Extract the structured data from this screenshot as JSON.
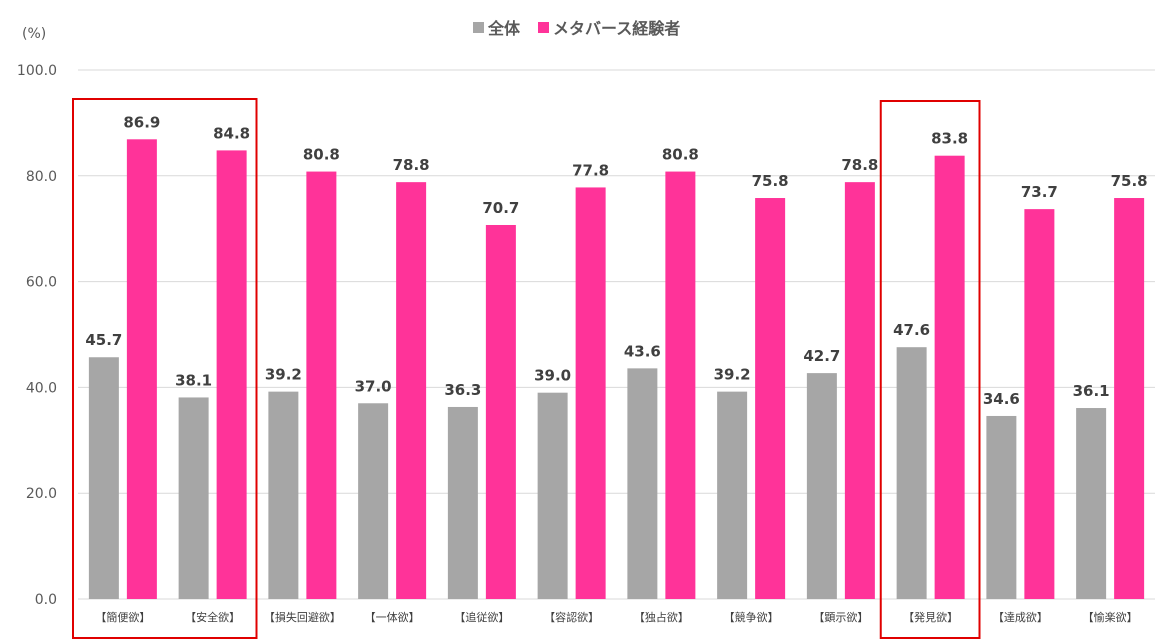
{
  "chart_data": {
    "type": "bar",
    "ylabel": "(%)",
    "ylim": [
      0,
      100
    ],
    "yticks": [
      "0.0",
      "20.0",
      "40.0",
      "60.0",
      "80.0",
      "100.0"
    ],
    "grid": true,
    "legend_position": "top-center",
    "categories": [
      "【簡便欲】",
      "【安全欲】",
      "【損失回避欲】",
      "【一体欲】",
      "【追従欲】",
      "【容認欲】",
      "【独占欲】",
      "【競争欲】",
      "【顕示欲】",
      "【発見欲】",
      "【達成欲】",
      "【愉楽欲】"
    ],
    "series": [
      {
        "name": "全体",
        "color": "#a6a6a6",
        "values": [
          45.7,
          38.1,
          39.2,
          37.0,
          36.3,
          39.0,
          43.6,
          39.2,
          42.7,
          47.6,
          34.6,
          36.1
        ]
      },
      {
        "name": "メタバース経験者",
        "color": "#ff3399",
        "values": [
          86.9,
          84.8,
          80.8,
          78.8,
          70.7,
          77.8,
          80.8,
          75.8,
          78.8,
          83.8,
          73.7,
          75.8
        ]
      }
    ],
    "highlighted_categories": [
      [
        "【簡便欲】",
        "【安全欲】"
      ],
      [
        "【発見欲】"
      ]
    ],
    "highlight_color": "#e00000"
  }
}
